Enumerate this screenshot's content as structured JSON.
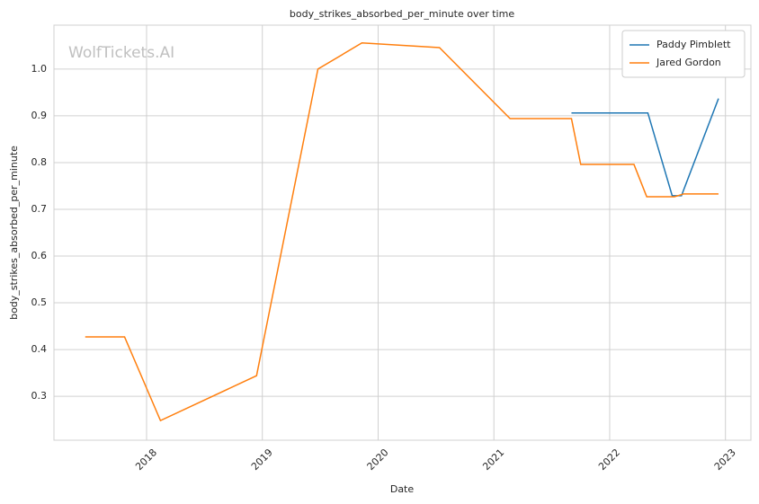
{
  "chart_data": {
    "type": "line",
    "title": "body_strikes_absorbed_per_minute over time",
    "watermark": "WolfTickets.AI",
    "x_label": "Date",
    "y_label": "body_strikes_absorbed_per_minute",
    "xlim": [
      2017.2,
      2023.22
    ],
    "xticks": [
      2018,
      2019,
      2020,
      2021,
      2022,
      2023
    ],
    "ylim": [
      0.206,
      1.094
    ],
    "yticks": [
      0.3,
      0.4,
      0.5,
      0.6,
      0.7,
      0.8,
      0.9,
      {
        "value": 1.0,
        "label": "1.0"
      }
    ],
    "grid": true,
    "legend": "upper right",
    "series": [
      {
        "name": "Paddy Pimblett",
        "color": "#1f77b4",
        "x": [
          2021.67,
          2022.33,
          2022.54,
          2022.62,
          2022.94
        ],
        "values": [
          0.906,
          0.906,
          0.729,
          0.729,
          0.937
        ]
      },
      {
        "name": "Jared Gordon",
        "color": "#ff7f0e",
        "x": [
          2017.47,
          2017.81,
          2018.12,
          2018.95,
          2019.48,
          2019.86,
          2020.53,
          2021.14,
          2021.67,
          2021.75,
          2022.21,
          2022.32,
          2022.56,
          2022.64,
          2022.94
        ],
        "values": [
          0.427,
          0.427,
          0.248,
          0.344,
          1.0,
          1.056,
          1.046,
          0.894,
          0.894,
          0.796,
          0.796,
          0.727,
          0.727,
          0.733,
          0.733
        ]
      }
    ]
  }
}
